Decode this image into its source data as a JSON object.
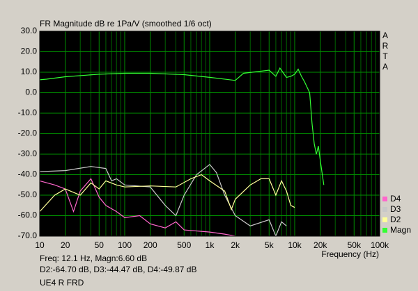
{
  "chart_data": {
    "type": "line",
    "title": "FR Magnitude dB re 1Pa/V (smoothed 1/6 oct)",
    "side_label": [
      "A",
      "R",
      "T",
      "A"
    ],
    "x_label": "Frequency (Hz)",
    "status_lines": [
      "Freq: 12.1 Hz, Magn:6.60 dB",
      "D2:-64.70 dB, D3:-44.47 dB, D4:-49.87 dB",
      "UE4 R FRD"
    ],
    "xlog": true,
    "grid": true,
    "xlim": [
      10,
      100000
    ],
    "ylim": [
      -70,
      30
    ],
    "xticks": [
      10,
      20,
      50,
      100,
      200,
      500,
      {
        "value": 1000,
        "label": "1k"
      },
      {
        "value": 2000,
        "label": "2k"
      },
      {
        "value": 5000,
        "label": "5k"
      },
      {
        "value": 10000,
        "label": "10k"
      },
      {
        "value": 20000,
        "label": "20k"
      },
      {
        "value": 50000,
        "label": "50k"
      },
      {
        "value": 100000,
        "label": "100k"
      }
    ],
    "xminor": [
      30,
      40,
      60,
      70,
      80,
      90,
      300,
      400,
      600,
      700,
      800,
      900,
      3000,
      4000,
      6000,
      7000,
      8000,
      9000,
      30000,
      40000,
      60000,
      70000,
      80000,
      90000
    ],
    "yticks": [
      {
        "value": 30,
        "label": "30.0"
      },
      {
        "value": 20,
        "label": "20.0"
      },
      {
        "value": 10,
        "label": "10.0"
      },
      {
        "value": 0,
        "label": "0.0"
      },
      {
        "value": -10,
        "label": "-10.0"
      },
      {
        "value": -20,
        "label": "-20.0"
      },
      {
        "value": -30,
        "label": "-30.0"
      },
      {
        "value": -40,
        "label": "-40.0"
      },
      {
        "value": -50,
        "label": "-50.0"
      },
      {
        "value": -60,
        "label": "-60.0"
      },
      {
        "value": -70,
        "label": "-70.0"
      }
    ],
    "series": [
      {
        "name": "D4",
        "color": "#ff66cc",
        "x": [
          10,
          15,
          20,
          25,
          30,
          40,
          50,
          60,
          80,
          100,
          150,
          200,
          300,
          400,
          500,
          1000,
          1500,
          2000
        ],
        "values": [
          -43,
          -45,
          -47,
          -58,
          -48,
          -42,
          -51,
          -55,
          -58,
          -61,
          -60,
          -64,
          -66,
          -63,
          -67,
          -68,
          -69,
          -70
        ]
      },
      {
        "name": "D3",
        "color": "#c8c8c8",
        "x": [
          10,
          20,
          40,
          60,
          70,
          80,
          100,
          200,
          300,
          400,
          500,
          700,
          1000,
          1200,
          1500,
          2000,
          3000,
          5000,
          6000,
          7000,
          8000
        ],
        "values": [
          -38.5,
          -38,
          -36,
          -37,
          -43,
          -42,
          -45,
          -46,
          -55,
          -60,
          -50,
          -40,
          -35,
          -39,
          -50,
          -60,
          -65,
          -62,
          -70,
          -63,
          -65
        ]
      },
      {
        "name": "D2",
        "color": "#ffff99",
        "x": [
          10,
          15,
          20,
          30,
          40,
          50,
          60,
          80,
          100,
          200,
          400,
          600,
          800,
          1000,
          1500,
          1800,
          2000,
          3000,
          4000,
          5000,
          6000,
          7000,
          8000,
          9000,
          10000
        ],
        "values": [
          -58,
          -50,
          -47,
          -50,
          -44,
          -47,
          -43,
          -45,
          -46,
          -45.5,
          -46,
          -42,
          -40,
          -43,
          -48,
          -57,
          -52,
          -45,
          -42,
          -42,
          -50,
          -43,
          -48,
          -55,
          -56
        ]
      },
      {
        "name": "Magn",
        "color": "#33ff33",
        "x": [
          10,
          12,
          20,
          50,
          100,
          200,
          500,
          1000,
          2000,
          2500,
          4000,
          5000,
          6000,
          6700,
          8000,
          9000,
          10000,
          11000,
          12000,
          13000,
          15000,
          16000,
          17000,
          18000,
          19000,
          20000,
          22000
        ],
        "values": [
          6.3,
          6.6,
          7.8,
          9,
          9.5,
          9.5,
          8.8,
          7.5,
          6,
          9.5,
          10.5,
          11,
          8,
          12,
          7.5,
          8,
          9,
          11.5,
          8,
          5.5,
          0,
          -15,
          -25,
          -30,
          -26,
          -33,
          -45
        ]
      }
    ]
  }
}
